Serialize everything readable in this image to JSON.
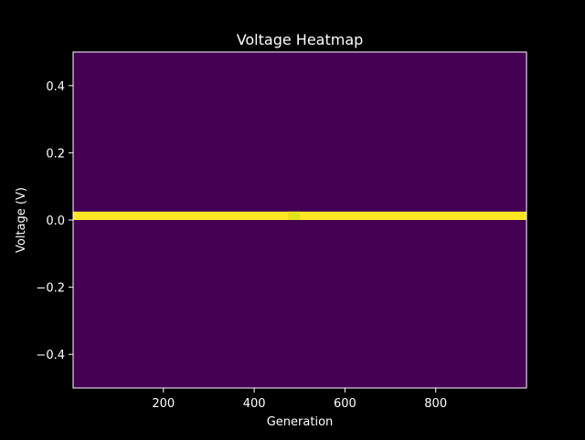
{
  "chart_data": {
    "type": "heatmap",
    "title": "Voltage Heatmap",
    "xlabel": "Generation",
    "ylabel": "Voltage (V)",
    "xlim": [
      1,
      1000
    ],
    "ylim": [
      -0.5,
      0.5
    ],
    "x_ticks": [
      200,
      400,
      600,
      800
    ],
    "x_tick_labels": [
      "200",
      "400",
      "600",
      "800"
    ],
    "y_ticks": [
      0.4,
      0.2,
      0.0,
      -0.2,
      -0.4
    ],
    "y_tick_labels": [
      "0.4",
      "0.2",
      "0.0",
      "−0.2",
      "−0.4"
    ],
    "grid": false,
    "colormap": "viridis",
    "background_color": "#440154",
    "band": {
      "voltage_min": 0.0,
      "voltage_max": 0.025,
      "color": "#fde725"
    },
    "band_anomaly": {
      "generation_min": 475,
      "generation_max": 500,
      "color": "#e2e419"
    }
  }
}
